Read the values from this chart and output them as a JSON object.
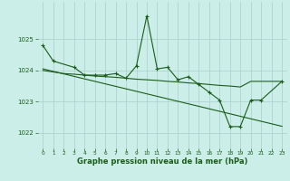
{
  "hours": [
    0,
    1,
    2,
    3,
    4,
    5,
    6,
    7,
    8,
    9,
    10,
    11,
    12,
    13,
    14,
    15,
    16,
    17,
    18,
    19,
    20,
    21,
    22,
    23
  ],
  "pressure_main": [
    1024.8,
    1024.3,
    null,
    1024.1,
    1023.85,
    1023.85,
    1023.85,
    1023.9,
    1023.75,
    1024.15,
    1025.75,
    1024.05,
    1024.1,
    1023.7,
    1023.8,
    1023.55,
    1023.3,
    1023.05,
    1022.2,
    1022.2,
    1023.05,
    1023.05,
    null,
    1023.65
  ],
  "pressure_smooth": [
    1024.0,
    1023.95,
    1023.9,
    1023.88,
    1023.85,
    1023.82,
    1023.8,
    1023.78,
    1023.75,
    1023.72,
    1023.7,
    1023.68,
    1023.65,
    1023.63,
    1023.6,
    1023.58,
    1023.55,
    1023.52,
    1023.5,
    1023.47,
    1023.65,
    1023.65,
    1023.65,
    1023.65
  ],
  "pressure_trend": [
    1024.05,
    1023.97,
    1023.89,
    1023.81,
    1023.73,
    1023.65,
    1023.57,
    1023.49,
    1023.41,
    1023.33,
    1023.25,
    1023.17,
    1023.09,
    1023.01,
    1022.93,
    1022.85,
    1022.77,
    1022.69,
    1022.61,
    1022.53,
    1022.45,
    1022.37,
    1022.29,
    1022.21
  ],
  "line_color": "#1a5c1a",
  "bg_color": "#cceee8",
  "grid_color": "#aacccc",
  "xlabel": "Graphe pression niveau de la mer (hPa)",
  "ylim": [
    1021.5,
    1026.2
  ],
  "xlim": [
    -0.5,
    23.5
  ],
  "yticks": [
    1022,
    1023,
    1024,
    1025
  ],
  "xticks": [
    0,
    1,
    2,
    3,
    4,
    5,
    6,
    7,
    8,
    9,
    10,
    11,
    12,
    13,
    14,
    15,
    16,
    17,
    18,
    19,
    20,
    21,
    22,
    23
  ]
}
